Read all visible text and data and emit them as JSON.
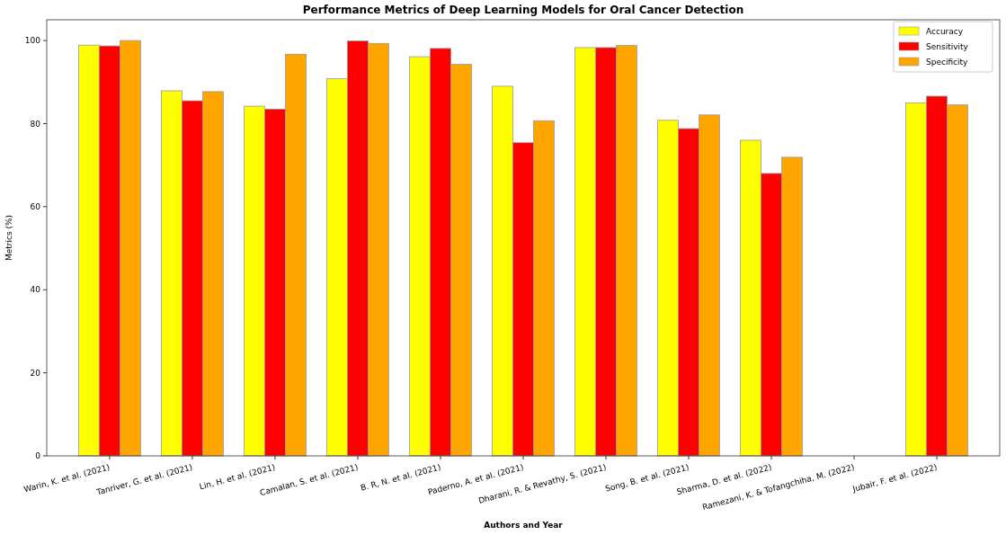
{
  "chart_data": {
    "type": "bar",
    "title": "Performance Metrics of Deep Learning Models for Oral Cancer Detection",
    "xlabel": "Authors and Year",
    "ylabel": "Metrics (%)",
    "categories": [
      "Warin, K. et al. (2021)",
      "Tanriver, G. et al. (2021)",
      "Lin, H. et al. (2021)",
      "Camalan, S. et al. (2021)",
      "B. R, N. et al. (2021)",
      "Paderno, A. et al. (2021)",
      "Dharani, R. & Revathy, S. (2021)",
      "Song, B. et al. (2021)",
      "Sharma, D. et al. (2022)",
      "Ramezani, K. & Tofangchiha, M. (2022)",
      "Jubair, F. et al. (2022)"
    ],
    "series": [
      {
        "name": "Accuracy",
        "color": "#ffff00",
        "values": [
          98.9,
          87.9,
          84.2,
          90.8,
          96.1,
          89.0,
          98.3,
          80.8,
          76.0,
          null,
          85.0
        ]
      },
      {
        "name": "Sensitivity",
        "color": "#ff0000",
        "values": [
          98.7,
          85.5,
          83.5,
          99.9,
          98.1,
          75.4,
          98.3,
          78.8,
          68.0,
          null,
          86.6
        ]
      },
      {
        "name": "Specificity",
        "color": "#ffa500",
        "values": [
          100,
          87.7,
          96.7,
          99.3,
          94.3,
          80.7,
          98.8,
          82.1,
          71.9,
          null,
          84.5
        ]
      }
    ],
    "ylim": [
      0,
      105
    ],
    "yticks": [
      0,
      20,
      40,
      60,
      80,
      100
    ],
    "grid": false,
    "legend": "top right"
  }
}
